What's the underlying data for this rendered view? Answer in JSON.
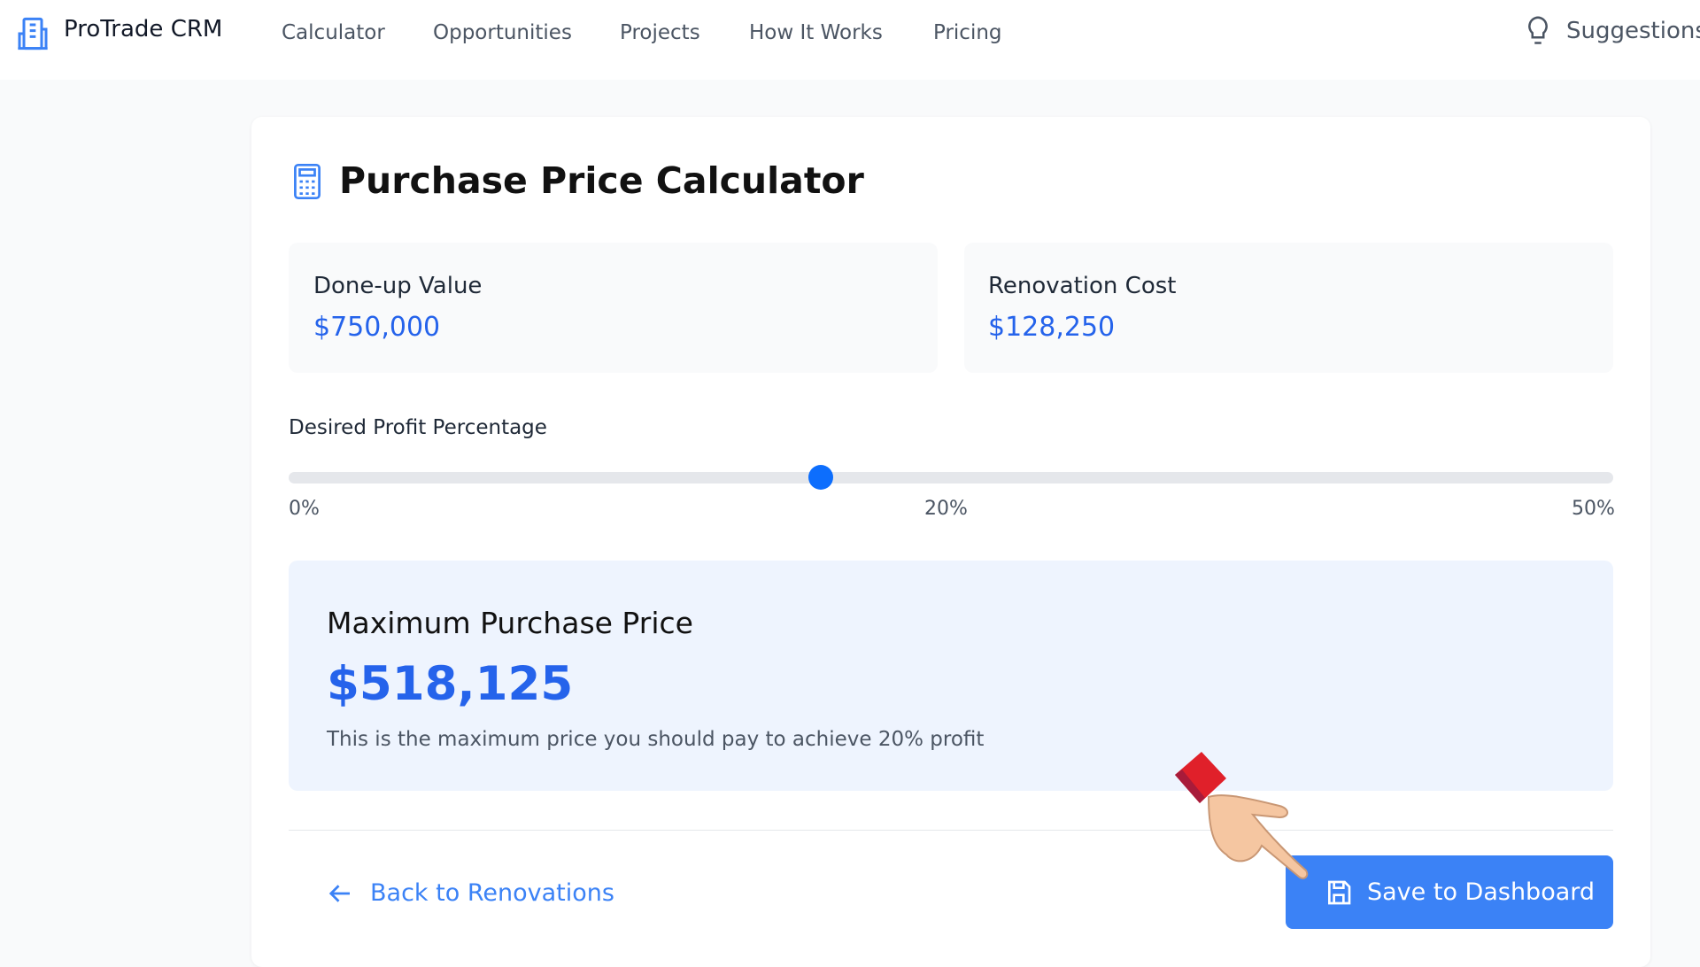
{
  "nav": {
    "brand": "ProTrade CRM",
    "links": [
      "Calculator",
      "Opportunities",
      "Projects",
      "How It Works",
      "Pricing"
    ],
    "suggestions": "Suggestions"
  },
  "calculator": {
    "title": "Purchase Price Calculator",
    "stats": [
      {
        "label": "Done-up Value",
        "value": "$750,000"
      },
      {
        "label": "Renovation Cost",
        "value": "$128,250"
      }
    ],
    "slider": {
      "label": "Desired Profit Percentage",
      "ticks": [
        "0%",
        "20%",
        "50%"
      ]
    },
    "result": {
      "heading": "Maximum Purchase Price",
      "value": "$518,125",
      "note": "This is the maximum price you should pay to achieve 20% profit"
    },
    "back": "Back to Renovations",
    "save": "Save to Dashboard"
  }
}
